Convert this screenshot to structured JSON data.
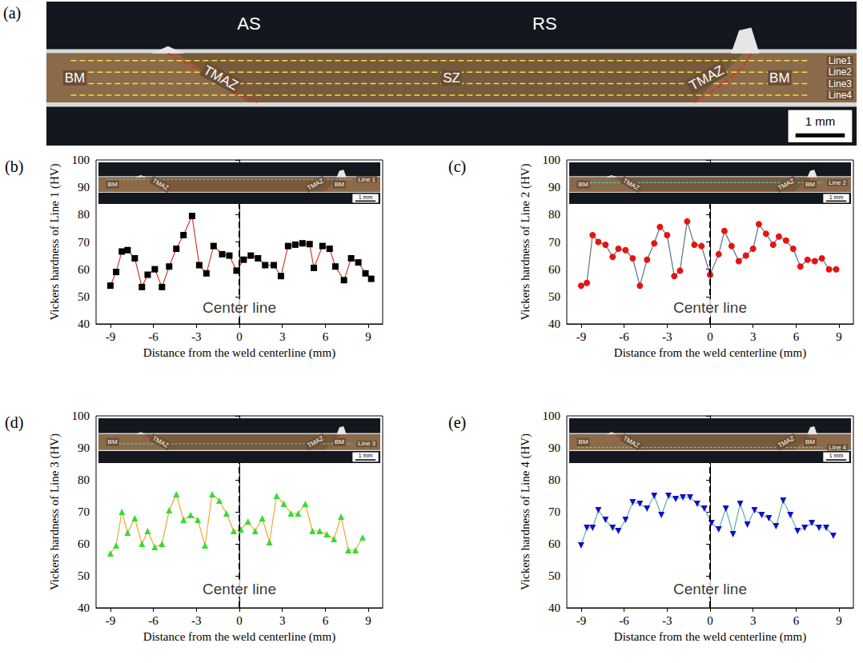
{
  "figure_a": {
    "panel": "(a)",
    "top_labels": [
      "AS",
      "RS"
    ],
    "zone_labels": [
      "BM",
      "TMAZ",
      "SZ",
      "TMAZ",
      "BM"
    ],
    "lines": [
      "Line1",
      "Line2",
      "Line3",
      "Line4"
    ],
    "scale": "1 mm"
  },
  "chart_data": [
    {
      "type": "line",
      "panel": "(b)",
      "x_label": "Distance from the weld centerline (mm)",
      "y_label": "Vickers hardness of Line 1 (HV)",
      "annotation": "Center line",
      "center_line": 0,
      "inset": {
        "zone_labels": [
          "BM",
          "TMAZ",
          "TMAZ",
          "BM"
        ],
        "line": "Line 1",
        "scale": "1 mm"
      },
      "xlim": [
        -10,
        10
      ],
      "xticks": [
        -9,
        -6,
        -3,
        0,
        3,
        6,
        9
      ],
      "ylim": [
        40,
        100
      ],
      "yticks": [
        40,
        50,
        60,
        70,
        80,
        90,
        100
      ],
      "grid": false,
      "marker": "square",
      "line_style": "solid",
      "color": "#000000",
      "x": [
        -9,
        -8.6,
        -8.2,
        -7.8,
        -7.3,
        -6.8,
        -6.4,
        -5.9,
        -5.4,
        -4.9,
        -4.4,
        -3.9,
        -3.3,
        -2.8,
        -2.3,
        -1.8,
        -1.2,
        -0.7,
        -0.2,
        0.3,
        0.8,
        1.3,
        1.8,
        2.4,
        2.9,
        3.4,
        3.9,
        4.4,
        4.9,
        5.2,
        5.8,
        6.3,
        6.7,
        7.3,
        7.8,
        8.3,
        8.8,
        9.2
      ],
      "values": [
        54,
        59,
        66.5,
        67,
        64,
        53.5,
        58,
        60,
        53.5,
        61,
        67.5,
        72.5,
        79.5,
        61.5,
        58.5,
        68.5,
        65.5,
        65,
        59.5,
        63.5,
        65,
        64,
        61.5,
        61.5,
        57.5,
        68.5,
        69,
        69.5,
        69.2,
        60.5,
        68.5,
        67.5,
        61,
        56,
        64,
        62.5,
        58.5,
        56.5
      ]
    },
    {
      "type": "line",
      "panel": "(c)",
      "x_label": "Distance from the weld centerline (mm)",
      "y_label": "Vickers hardness of Line 2 (HV)",
      "annotation": "Center line",
      "center_line": 0,
      "inset": {
        "zone_labels": [
          "BM",
          "TMAZ",
          "TMAZ",
          "BM"
        ],
        "line": "Line 2",
        "scale": "1 mm"
      },
      "xlim": [
        -10,
        10
      ],
      "xticks": [
        -9,
        -6,
        -3,
        0,
        3,
        6,
        9
      ],
      "ylim": [
        40,
        100
      ],
      "yticks": [
        40,
        50,
        60,
        70,
        80,
        90,
        100
      ],
      "grid": false,
      "marker": "circle",
      "line_style": "solid",
      "color": "#e8130f",
      "x": [
        -9,
        -8.6,
        -8.2,
        -7.8,
        -7.3,
        -6.8,
        -6.4,
        -5.9,
        -5.4,
        -4.9,
        -4.4,
        -3.9,
        -3.5,
        -3,
        -2.5,
        -2.1,
        -1.6,
        -1.1,
        -0.6,
        0,
        0.6,
        1,
        1.5,
        2,
        2.5,
        3,
        3.4,
        3.9,
        4.4,
        4.8,
        5.3,
        5.8,
        6.3,
        6.8,
        7.3,
        7.8,
        8.3,
        8.8
      ],
      "values": [
        54,
        55,
        72.5,
        70,
        69,
        64.5,
        67.5,
        67,
        64,
        54,
        63.5,
        69.5,
        75.5,
        72.5,
        57.5,
        59.5,
        77.5,
        69,
        68.5,
        58,
        65.5,
        74,
        68.5,
        63,
        65,
        67.5,
        76.5,
        73,
        69,
        72,
        70.5,
        67.5,
        61,
        63.5,
        63,
        64,
        60,
        60
      ]
    },
    {
      "type": "line",
      "panel": "(d)",
      "x_label": "Distance from the weld centerline (mm)",
      "y_label": "Vickers hardness of Line 3 (HV)",
      "annotation": "Center line",
      "center_line": 0,
      "inset": {
        "zone_labels": [
          "BM",
          "TMAZ",
          "TMAZ",
          "BM"
        ],
        "line": "Line 3",
        "scale": "1 mm"
      },
      "xlim": [
        -10,
        10
      ],
      "xticks": [
        -9,
        -6,
        -3,
        0,
        3,
        6,
        9
      ],
      "ylim": [
        40,
        100
      ],
      "yticks": [
        40,
        50,
        60,
        70,
        80,
        90,
        100
      ],
      "grid": false,
      "marker": "triangle",
      "line_style": "solid",
      "color": "#33dd33",
      "x": [
        -9,
        -8.6,
        -8.2,
        -7.8,
        -7.3,
        -6.8,
        -6.4,
        -5.9,
        -5.4,
        -4.9,
        -4.4,
        -3.9,
        -3.4,
        -2.9,
        -2.4,
        -1.9,
        -1.4,
        -0.9,
        -0.4,
        0.1,
        0.6,
        1.1,
        1.6,
        2.1,
        2.6,
        3.1,
        3.6,
        4.1,
        4.6,
        5.1,
        5.6,
        6.1,
        6.6,
        7.1,
        7.6,
        8.1,
        8.6
      ],
      "values": [
        57,
        59.5,
        70,
        63.5,
        68,
        60,
        64,
        59,
        60,
        70.5,
        75.5,
        67.5,
        69,
        67.5,
        59.5,
        75.5,
        73.5,
        69.5,
        64,
        64.5,
        67,
        64,
        68,
        60.5,
        75,
        72.5,
        69.5,
        69.5,
        72.5,
        64,
        64,
        63,
        61.5,
        68.5,
        58,
        58,
        62
      ]
    },
    {
      "type": "line",
      "panel": "(e)",
      "x_label": "Distance from the weld centerline (mm)",
      "y_label": "Vickers hardness of Line 4 (HV)",
      "annotation": "Center line",
      "center_line": 0,
      "inset": {
        "zone_labels": [
          "BM",
          "TMAZ",
          "TMAZ",
          "BM"
        ],
        "line": "Line 4",
        "scale": "1 mm"
      },
      "xlim": [
        -10,
        10
      ],
      "xticks": [
        -9,
        -6,
        -3,
        0,
        3,
        6,
        9
      ],
      "ylim": [
        40,
        100
      ],
      "yticks": [
        40,
        50,
        60,
        70,
        80,
        90,
        100
      ],
      "grid": false,
      "marker": "triangle_down",
      "line_style": "solid",
      "color": "#1010c8",
      "x": [
        -9,
        -8.6,
        -8.2,
        -7.8,
        -7.3,
        -6.8,
        -6.4,
        -5.9,
        -5.4,
        -4.9,
        -4.4,
        -3.9,
        -3.4,
        -2.9,
        -2.4,
        -1.9,
        -1.4,
        -0.9,
        -0.4,
        0.1,
        0.6,
        1.1,
        1.6,
        2.1,
        2.6,
        3.1,
        3.6,
        4.1,
        4.6,
        5.1,
        5.6,
        6.1,
        6.6,
        7.1,
        7.6,
        8.1,
        8.6
      ],
      "values": [
        59.5,
        65,
        65,
        70.5,
        67.5,
        65,
        64,
        67.5,
        73,
        72.5,
        71,
        75,
        69,
        75,
        74,
        74.5,
        74.5,
        72.5,
        71,
        66.5,
        64.5,
        71,
        63,
        72.5,
        66,
        70.5,
        69,
        68,
        65.5,
        73.5,
        69,
        64,
        65,
        66.5,
        65,
        65,
        62.5
      ]
    }
  ]
}
